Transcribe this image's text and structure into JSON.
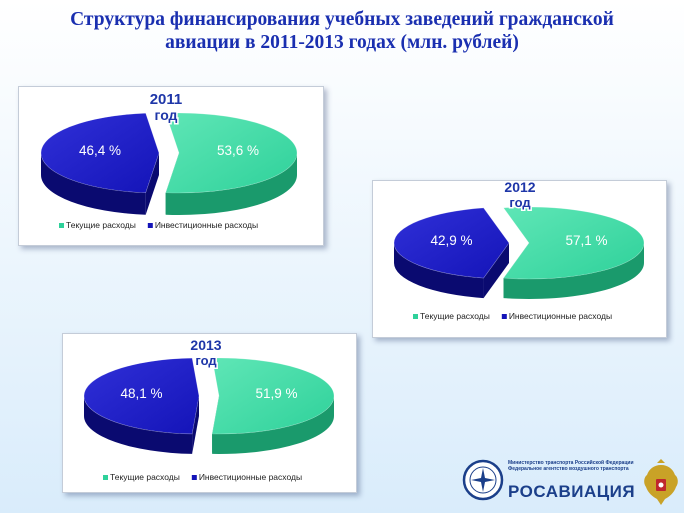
{
  "page": {
    "title_line1": "Структура финансирования учебных заведений гражданской",
    "title_line2": "авиации в 2011-2013 годах (млн. рублей)"
  },
  "colors": {
    "current": "#2ed19a",
    "current_side": "#1a9a6c",
    "investment": "#1414b8",
    "investment_side": "#0a0a70"
  },
  "chart_data": [
    {
      "type": "pie",
      "year": "2011",
      "year_suffix": "год",
      "slices": [
        {
          "name": "Текущие расходы",
          "value": 53.6,
          "label": "53,6 %"
        },
        {
          "name": "Инвестиционные расходы",
          "value": 46.4,
          "label": "46,4 %"
        }
      ],
      "legend_position": "bottom"
    },
    {
      "type": "pie",
      "year": "2012",
      "year_suffix": "год",
      "slices": [
        {
          "name": "Текущие расходы",
          "value": 57.1,
          "label": "57,1 %"
        },
        {
          "name": "Инвестиционные расходы",
          "value": 42.9,
          "label": "42,9 %"
        }
      ],
      "legend_position": "bottom"
    },
    {
      "type": "pie",
      "year": "2013",
      "year_suffix": "год",
      "slices": [
        {
          "name": "Текущие расходы",
          "value": 51.9,
          "label": "51,9 %"
        },
        {
          "name": "Инвестиционные расходы",
          "value": 48.1,
          "label": "48,1 %"
        }
      ],
      "legend_position": "bottom"
    }
  ],
  "logo": {
    "ministry_line1": "Министерство транспорта Российской Федерации",
    "ministry_line2": "Федеральное агентство воздушного транспорта",
    "brand": "РОСАВИАЦИЯ",
    "emblem_icon": "rosaviatsiya-emblem-icon",
    "coat_icon": "russian-coat-of-arms-icon"
  }
}
